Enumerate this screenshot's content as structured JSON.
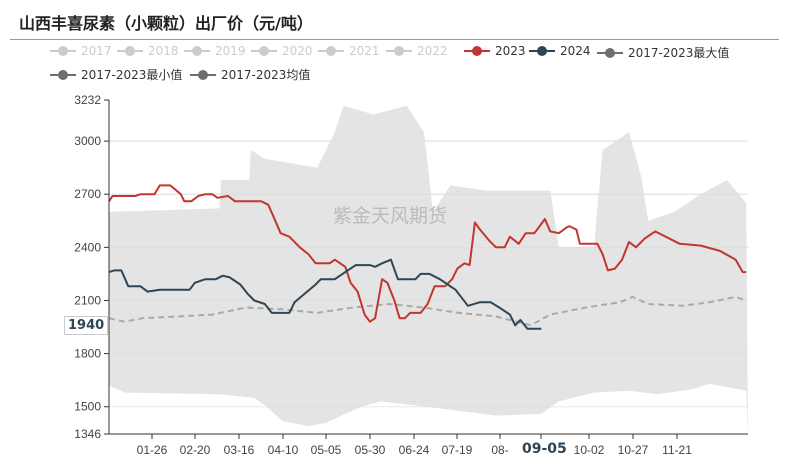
{
  "title": "山西丰喜尿素（小颗粒）出厂价（元/吨）",
  "watermark": "紫金天风期货",
  "legend": [
    {
      "label": "2017",
      "color": "#cccccc"
    },
    {
      "label": "2018",
      "color": "#cccccc"
    },
    {
      "label": "2019",
      "color": "#cccccc"
    },
    {
      "label": "2020",
      "color": "#cccccc"
    },
    {
      "label": "2021",
      "color": "#cccccc"
    },
    {
      "label": "2022",
      "color": "#cccccc"
    },
    {
      "label": "2023",
      "color": "#c23531"
    },
    {
      "label": "2024",
      "color": "#2f4554"
    },
    {
      "label": "2017-2023最大值",
      "color": "#6e6e6e"
    },
    {
      "label": "2017-2023最小值",
      "color": "#6e6e6e"
    },
    {
      "label": "2017-2023均值",
      "color": "#6e6e6e"
    }
  ],
  "pointer": {
    "y_value": "1940",
    "x_value": "09-05"
  },
  "chart_data": {
    "type": "line",
    "ylim": [
      1346,
      3232
    ],
    "y_ticks": [
      "3232",
      "3000",
      "2700",
      "2400",
      "2100",
      "1800",
      "1500",
      "1346"
    ],
    "x_ticks": [
      "01-26",
      "02-20",
      "03-16",
      "04-10",
      "05-05",
      "05-30",
      "06-24",
      "07-19",
      "08-",
      "10-02",
      "10-27",
      "11-21"
    ],
    "grid": "horizontal",
    "series": [
      {
        "name": "2017-2023最大值",
        "style": "band-top",
        "color": "#e4e4e4",
        "points": [
          [
            "01-01",
            2600
          ],
          [
            "03-05",
            2620
          ],
          [
            "03-06",
            2780
          ],
          [
            "03-22",
            2780
          ],
          [
            "03-23",
            2950
          ],
          [
            "03-31",
            2900
          ],
          [
            "04-30",
            2850
          ],
          [
            "05-10",
            3050
          ],
          [
            "05-15",
            3200
          ],
          [
            "06-01",
            3150
          ],
          [
            "06-20",
            3200
          ],
          [
            "06-30",
            3050
          ],
          [
            "07-05",
            2600
          ],
          [
            "07-15",
            2750
          ],
          [
            "08-05",
            2720
          ],
          [
            "09-10",
            2720
          ],
          [
            "09-15",
            2400
          ],
          [
            "10-05",
            2400
          ],
          [
            "10-10",
            2950
          ],
          [
            "10-25",
            3050
          ],
          [
            "11-01",
            2800
          ],
          [
            "11-05",
            2550
          ],
          [
            "11-20",
            2600
          ],
          [
            "12-05",
            2700
          ],
          [
            "12-20",
            2780
          ],
          [
            "12-31",
            2650
          ]
        ]
      },
      {
        "name": "2017-2023最小值",
        "style": "band-bottom",
        "color": "#ffffff",
        "points": [
          [
            "01-01",
            1620
          ],
          [
            "01-10",
            1580
          ],
          [
            "03-05",
            1570
          ],
          [
            "03-25",
            1550
          ],
          [
            "04-01",
            1500
          ],
          [
            "04-10",
            1420
          ],
          [
            "04-25",
            1390
          ],
          [
            "05-05",
            1410
          ],
          [
            "05-25",
            1500
          ],
          [
            "06-05",
            1530
          ],
          [
            "07-01",
            1500
          ],
          [
            "07-25",
            1470
          ],
          [
            "08-10",
            1450
          ],
          [
            "09-05",
            1460
          ],
          [
            "09-15",
            1530
          ],
          [
            "10-05",
            1580
          ],
          [
            "10-25",
            1590
          ],
          [
            "11-10",
            1570
          ],
          [
            "12-01",
            1600
          ],
          [
            "12-10",
            1630
          ],
          [
            "12-31",
            1590
          ]
        ]
      },
      {
        "name": "2017-2023均值",
        "style": "dashed",
        "color": "#aaaaaa",
        "points": [
          [
            "01-01",
            2000
          ],
          [
            "01-10",
            1980
          ],
          [
            "01-20",
            2000
          ],
          [
            "02-10",
            2010
          ],
          [
            "03-01",
            2020
          ],
          [
            "03-20",
            2060
          ],
          [
            "04-10",
            2050
          ],
          [
            "04-30",
            2030
          ],
          [
            "05-20",
            2060
          ],
          [
            "06-10",
            2080
          ],
          [
            "06-30",
            2060
          ],
          [
            "07-20",
            2030
          ],
          [
            "08-10",
            2010
          ],
          [
            "08-30",
            1960
          ],
          [
            "09-10",
            2020
          ],
          [
            "09-30",
            2060
          ],
          [
            "10-20",
            2090
          ],
          [
            "10-27",
            2120
          ],
          [
            "11-05",
            2080
          ],
          [
            "11-25",
            2070
          ],
          [
            "12-10",
            2090
          ],
          [
            "12-25",
            2120
          ],
          [
            "12-31",
            2100
          ]
        ]
      },
      {
        "name": "2023",
        "style": "solid",
        "color": "#c23531",
        "points": [
          [
            "01-01",
            2660
          ],
          [
            "01-03",
            2690
          ],
          [
            "01-16",
            2690
          ],
          [
            "01-19",
            2700
          ],
          [
            "01-27",
            2700
          ],
          [
            "01-30",
            2750
          ],
          [
            "02-05",
            2750
          ],
          [
            "02-11",
            2700
          ],
          [
            "02-13",
            2660
          ],
          [
            "02-17",
            2660
          ],
          [
            "02-21",
            2690
          ],
          [
            "02-25",
            2700
          ],
          [
            "03-01",
            2700
          ],
          [
            "03-04",
            2680
          ],
          [
            "03-10",
            2690
          ],
          [
            "03-14",
            2660
          ],
          [
            "03-29",
            2660
          ],
          [
            "04-02",
            2640
          ],
          [
            "04-06",
            2550
          ],
          [
            "04-09",
            2480
          ],
          [
            "04-14",
            2460
          ],
          [
            "04-20",
            2400
          ],
          [
            "04-25",
            2360
          ],
          [
            "04-29",
            2310
          ],
          [
            "05-07",
            2310
          ],
          [
            "05-10",
            2330
          ],
          [
            "05-16",
            2290
          ],
          [
            "05-19",
            2200
          ],
          [
            "05-23",
            2150
          ],
          [
            "05-27",
            2020
          ],
          [
            "05-30",
            1980
          ],
          [
            "06-02",
            2000
          ],
          [
            "06-06",
            2220
          ],
          [
            "06-09",
            2200
          ],
          [
            "06-13",
            2100
          ],
          [
            "06-16",
            2000
          ],
          [
            "06-19",
            2000
          ],
          [
            "06-22",
            2030
          ],
          [
            "06-28",
            2030
          ],
          [
            "07-02",
            2080
          ],
          [
            "07-06",
            2180
          ],
          [
            "07-12",
            2180
          ],
          [
            "07-16",
            2220
          ],
          [
            "07-19",
            2280
          ],
          [
            "07-23",
            2310
          ],
          [
            "07-26",
            2300
          ],
          [
            "07-29",
            2540
          ],
          [
            "08-01",
            2500
          ],
          [
            "08-06",
            2440
          ],
          [
            "08-10",
            2400
          ],
          [
            "08-15",
            2400
          ],
          [
            "08-18",
            2460
          ],
          [
            "08-23",
            2420
          ],
          [
            "08-27",
            2480
          ],
          [
            "09-01",
            2480
          ],
          [
            "09-04",
            2520
          ],
          [
            "09-07",
            2560
          ],
          [
            "09-10",
            2490
          ],
          [
            "09-15",
            2480
          ],
          [
            "09-19",
            2510
          ],
          [
            "09-21",
            2520
          ],
          [
            "09-25",
            2500
          ],
          [
            "09-27",
            2420
          ],
          [
            "10-07",
            2420
          ],
          [
            "10-10",
            2360
          ],
          [
            "10-13",
            2270
          ],
          [
            "10-17",
            2280
          ],
          [
            "10-21",
            2330
          ],
          [
            "10-25",
            2430
          ],
          [
            "10-29",
            2400
          ],
          [
            "11-03",
            2450
          ],
          [
            "11-09",
            2490
          ],
          [
            "11-15",
            2460
          ],
          [
            "11-23",
            2420
          ],
          [
            "12-05",
            2410
          ],
          [
            "12-16",
            2380
          ],
          [
            "12-25",
            2330
          ],
          [
            "12-29",
            2260
          ],
          [
            "12-31",
            2260
          ]
        ]
      },
      {
        "name": "2024",
        "style": "solid",
        "color": "#2f4554",
        "points": [
          [
            "01-01",
            2260
          ],
          [
            "01-04",
            2270
          ],
          [
            "01-08",
            2270
          ],
          [
            "01-12",
            2180
          ],
          [
            "01-19",
            2180
          ],
          [
            "01-23",
            2150
          ],
          [
            "01-30",
            2160
          ],
          [
            "02-16",
            2160
          ],
          [
            "02-19",
            2200
          ],
          [
            "02-25",
            2220
          ],
          [
            "03-03",
            2220
          ],
          [
            "03-07",
            2240
          ],
          [
            "03-11",
            2230
          ],
          [
            "03-17",
            2190
          ],
          [
            "03-21",
            2140
          ],
          [
            "03-25",
            2100
          ],
          [
            "03-31",
            2080
          ],
          [
            "04-04",
            2030
          ],
          [
            "04-14",
            2030
          ],
          [
            "04-17",
            2090
          ],
          [
            "04-23",
            2140
          ],
          [
            "04-29",
            2190
          ],
          [
            "05-02",
            2220
          ],
          [
            "05-10",
            2220
          ],
          [
            "05-16",
            2260
          ],
          [
            "05-22",
            2300
          ],
          [
            "05-30",
            2300
          ],
          [
            "06-02",
            2290
          ],
          [
            "06-06",
            2310
          ],
          [
            "06-11",
            2330
          ],
          [
            "06-15",
            2220
          ],
          [
            "06-25",
            2220
          ],
          [
            "06-28",
            2250
          ],
          [
            "07-03",
            2250
          ],
          [
            "07-09",
            2220
          ],
          [
            "07-18",
            2160
          ],
          [
            "07-25",
            2070
          ],
          [
            "08-01",
            2090
          ],
          [
            "08-07",
            2090
          ],
          [
            "08-12",
            2060
          ],
          [
            "08-18",
            2020
          ],
          [
            "08-21",
            1960
          ],
          [
            "08-24",
            1990
          ],
          [
            "08-28",
            1940
          ],
          [
            "09-05",
            1940
          ]
        ]
      }
    ]
  }
}
